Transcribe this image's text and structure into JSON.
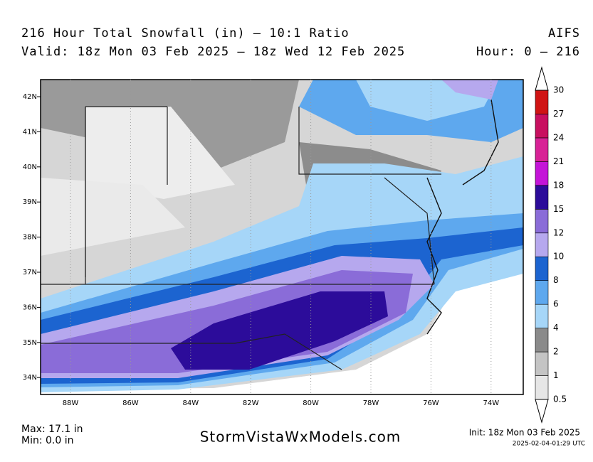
{
  "header": {
    "title": "216 Hour Total Snowfall (in) – 10:1 Ratio",
    "model": "AIFS",
    "valid": "Valid: 18z Mon 03 Feb 2025 – 18z Wed 12 Feb 2025",
    "hour": "Hour: 0 – 216"
  },
  "map": {
    "lat_labels": [
      "42N",
      "41N",
      "40N",
      "39N",
      "38N",
      "37N",
      "36N",
      "35N",
      "34N"
    ],
    "lon_labels": [
      "88W",
      "86W",
      "84W",
      "82W",
      "80W",
      "78W",
      "76W",
      "74W"
    ]
  },
  "legend": {
    "ticks": [
      0.5,
      1,
      2,
      4,
      6,
      8,
      10,
      12,
      15,
      18,
      21,
      24,
      27,
      30
    ],
    "colors": [
      "#e6e6e6",
      "#c4c4c4",
      "#8a8a8a",
      "#a6d6f8",
      "#5ea8ee",
      "#1c64d0",
      "#b6a8ee",
      "#8a6cd8",
      "#2c0c9a",
      "#c414d8",
      "#d82296",
      "#c81060",
      "#d01414"
    ]
  },
  "footer": {
    "max": "Max: 17.1 in",
    "min": "Min: 0.0 in",
    "site": "StormVistaWxModels.com",
    "init": "Init: 18z Mon 03 Feb 2025",
    "timestamp": "2025-02-04-01:29 UTC"
  }
}
